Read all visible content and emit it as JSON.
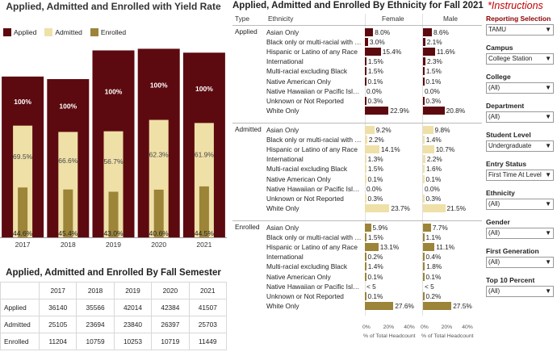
{
  "chart_data": {
    "type": "bar",
    "title": "Applied, Admitted and Enrolled with Yield Rate",
    "categories": [
      "2017",
      "2018",
      "2019",
      "2020",
      "2021"
    ],
    "legend": [
      "Applied",
      "Admitted",
      "Enrolled"
    ],
    "legend_position": "top-left",
    "colors": {
      "applied": "#5c0a0f",
      "admitted": "#efe0a8",
      "enrolled": "#9c8438"
    },
    "series": [
      {
        "name": "Applied",
        "values": [
          36140,
          35566,
          42014,
          42384,
          41507
        ],
        "labels": [
          "100%",
          "100%",
          "100%",
          "100%",
          "100%"
        ]
      },
      {
        "name": "Admitted",
        "values": [
          25105,
          23694,
          23840,
          26397,
          25703
        ],
        "labels": [
          "69.5%",
          "66.6%",
          "56.7%",
          "62.3%",
          "61.9%"
        ]
      },
      {
        "name": "Enrolled",
        "values": [
          11204,
          10759,
          10253,
          10719,
          11449
        ],
        "labels": [
          "44.6%",
          "45.4%",
          "43.0%",
          "40.6%",
          "44.5%"
        ]
      }
    ],
    "ylim": [
      0,
      45000
    ],
    "grid": false
  },
  "semester": {
    "title": "Applied, Admitted and Enrolled By Fall Semester",
    "years": [
      "2017",
      "2018",
      "2019",
      "2020",
      "2021"
    ],
    "rows": [
      {
        "label": "Applied",
        "values": [
          "36140",
          "35566",
          "42014",
          "42384",
          "41507"
        ]
      },
      {
        "label": "Admitted",
        "values": [
          "25105",
          "23694",
          "23840",
          "26397",
          "25703"
        ]
      },
      {
        "label": "Enrolled",
        "values": [
          "11204",
          "10759",
          "10253",
          "10719",
          "11449"
        ]
      }
    ]
  },
  "ethnicity": {
    "title": "Applied, Admitted and Enrolled By Ethnicity for Fall 2021",
    "headers": {
      "type": "Type",
      "ethnicity": "Ethnicity",
      "female": "Female",
      "male": "Male"
    },
    "axis": {
      "ticks": [
        "0%",
        "20%",
        "40%"
      ],
      "label": "% of Total Headcount",
      "max": 50
    },
    "groups": [
      {
        "type": "Applied",
        "rows": [
          {
            "name": "Asian Only",
            "female": 8.0,
            "male": 8.6,
            "female_label": "8.0%",
            "male_label": "8.6%"
          },
          {
            "name": "Black only or multi-racial with Bl...",
            "female": 3.0,
            "male": 2.1,
            "female_label": "3.0%",
            "male_label": "2.1%"
          },
          {
            "name": "Hispanic or Latino of any Race",
            "female": 15.4,
            "male": 11.6,
            "female_label": "15.4%",
            "male_label": "11.6%"
          },
          {
            "name": "International",
            "female": 1.5,
            "male": 2.3,
            "female_label": "1.5%",
            "male_label": "2.3%"
          },
          {
            "name": "Multi-racial excluding Black",
            "female": 1.5,
            "male": 1.5,
            "female_label": "1.5%",
            "male_label": "1.5%"
          },
          {
            "name": "Native American Only",
            "female": 0.1,
            "male": 0.1,
            "female_label": "0.1%",
            "male_label": "0.1%"
          },
          {
            "name": "Native Hawaiian or Pacific Islan...",
            "female": 0.0,
            "male": 0.0,
            "female_label": "0.0%",
            "male_label": "0.0%"
          },
          {
            "name": "Unknown or Not Reported",
            "female": 0.3,
            "male": 0.3,
            "female_label": "0.3%",
            "male_label": "0.3%"
          },
          {
            "name": "White Only",
            "female": 22.9,
            "male": 20.8,
            "female_label": "22.9%",
            "male_label": "20.8%"
          }
        ]
      },
      {
        "type": "Admitted",
        "rows": [
          {
            "name": "Asian Only",
            "female": 9.2,
            "male": 9.8,
            "female_label": "9.2%",
            "male_label": "9.8%"
          },
          {
            "name": "Black only or multi-racial with Bl...",
            "female": 2.2,
            "male": 1.4,
            "female_label": "2.2%",
            "male_label": "1.4%"
          },
          {
            "name": "Hispanic or Latino of any Race",
            "female": 14.1,
            "male": 10.7,
            "female_label": "14.1%",
            "male_label": "10.7%"
          },
          {
            "name": "International",
            "female": 1.3,
            "male": 2.2,
            "female_label": "1.3%",
            "male_label": "2.2%"
          },
          {
            "name": "Multi-racial excluding Black",
            "female": 1.5,
            "male": 1.6,
            "female_label": "1.5%",
            "male_label": "1.6%"
          },
          {
            "name": "Native American Only",
            "female": 0.1,
            "male": 0.1,
            "female_label": "0.1%",
            "male_label": "0.1%"
          },
          {
            "name": "Native Hawaiian or Pacific Islan...",
            "female": 0.0,
            "male": 0.0,
            "female_label": "0.0%",
            "male_label": "0.0%"
          },
          {
            "name": "Unknown or Not Reported",
            "female": 0.3,
            "male": 0.3,
            "female_label": "0.3%",
            "male_label": "0.3%"
          },
          {
            "name": "White Only",
            "female": 23.7,
            "male": 21.5,
            "female_label": "23.7%",
            "male_label": "21.5%"
          }
        ]
      },
      {
        "type": "Enrolled",
        "rows": [
          {
            "name": "Asian Only",
            "female": 5.9,
            "male": 7.7,
            "female_label": "5.9%",
            "male_label": "7.7%"
          },
          {
            "name": "Black only or multi-racial with Bl...",
            "female": 1.5,
            "male": 1.1,
            "female_label": "1.5%",
            "male_label": "1.1%"
          },
          {
            "name": "Hispanic or Latino of any Race",
            "female": 13.1,
            "male": 11.1,
            "female_label": "13.1%",
            "male_label": "11.1%"
          },
          {
            "name": "International",
            "female": 0.2,
            "male": 0.4,
            "female_label": "0.2%",
            "male_label": "0.4%"
          },
          {
            "name": "Multi-racial excluding Black",
            "female": 1.4,
            "male": 1.8,
            "female_label": "1.4%",
            "male_label": "1.8%"
          },
          {
            "name": "Native American Only",
            "female": 0.1,
            "male": 0.1,
            "female_label": "0.1%",
            "male_label": "0.1%"
          },
          {
            "name": "Native Hawaiian or Pacific Islan...",
            "female": 0.0,
            "male": 0.0,
            "female_label": "< 5",
            "male_label": "< 5"
          },
          {
            "name": "Unknown or Not Reported",
            "female": 0.1,
            "male": 0.2,
            "female_label": "0.1%",
            "male_label": "0.2%"
          },
          {
            "name": "White Only",
            "female": 27.6,
            "male": 27.5,
            "female_label": "27.6%",
            "male_label": "27.5%"
          }
        ]
      }
    ],
    "colors": {
      "Applied": "#5c0a0f",
      "Admitted": "#efe0a8",
      "Enrolled": "#9c8438"
    }
  },
  "filters": {
    "instructions": "*Instructions",
    "reporting_label": "Reporting Selection",
    "items": [
      {
        "label": "",
        "value": "TAMU"
      },
      {
        "label": "Campus",
        "value": "College Station"
      },
      {
        "label": "College",
        "value": "(All)"
      },
      {
        "label": "Department",
        "value": "(All)"
      },
      {
        "label": "Student Level",
        "value": "Undergraduate"
      },
      {
        "label": "Entry Status",
        "value": "First Time At Level"
      },
      {
        "label": "Ethnicity",
        "value": "(All)"
      },
      {
        "label": "Gender",
        "value": "(All)"
      },
      {
        "label": "First Generation",
        "value": "(All)"
      },
      {
        "label": "Top 10 Percent",
        "value": "(All)"
      }
    ],
    "chevron": "chevron-down-icon"
  }
}
